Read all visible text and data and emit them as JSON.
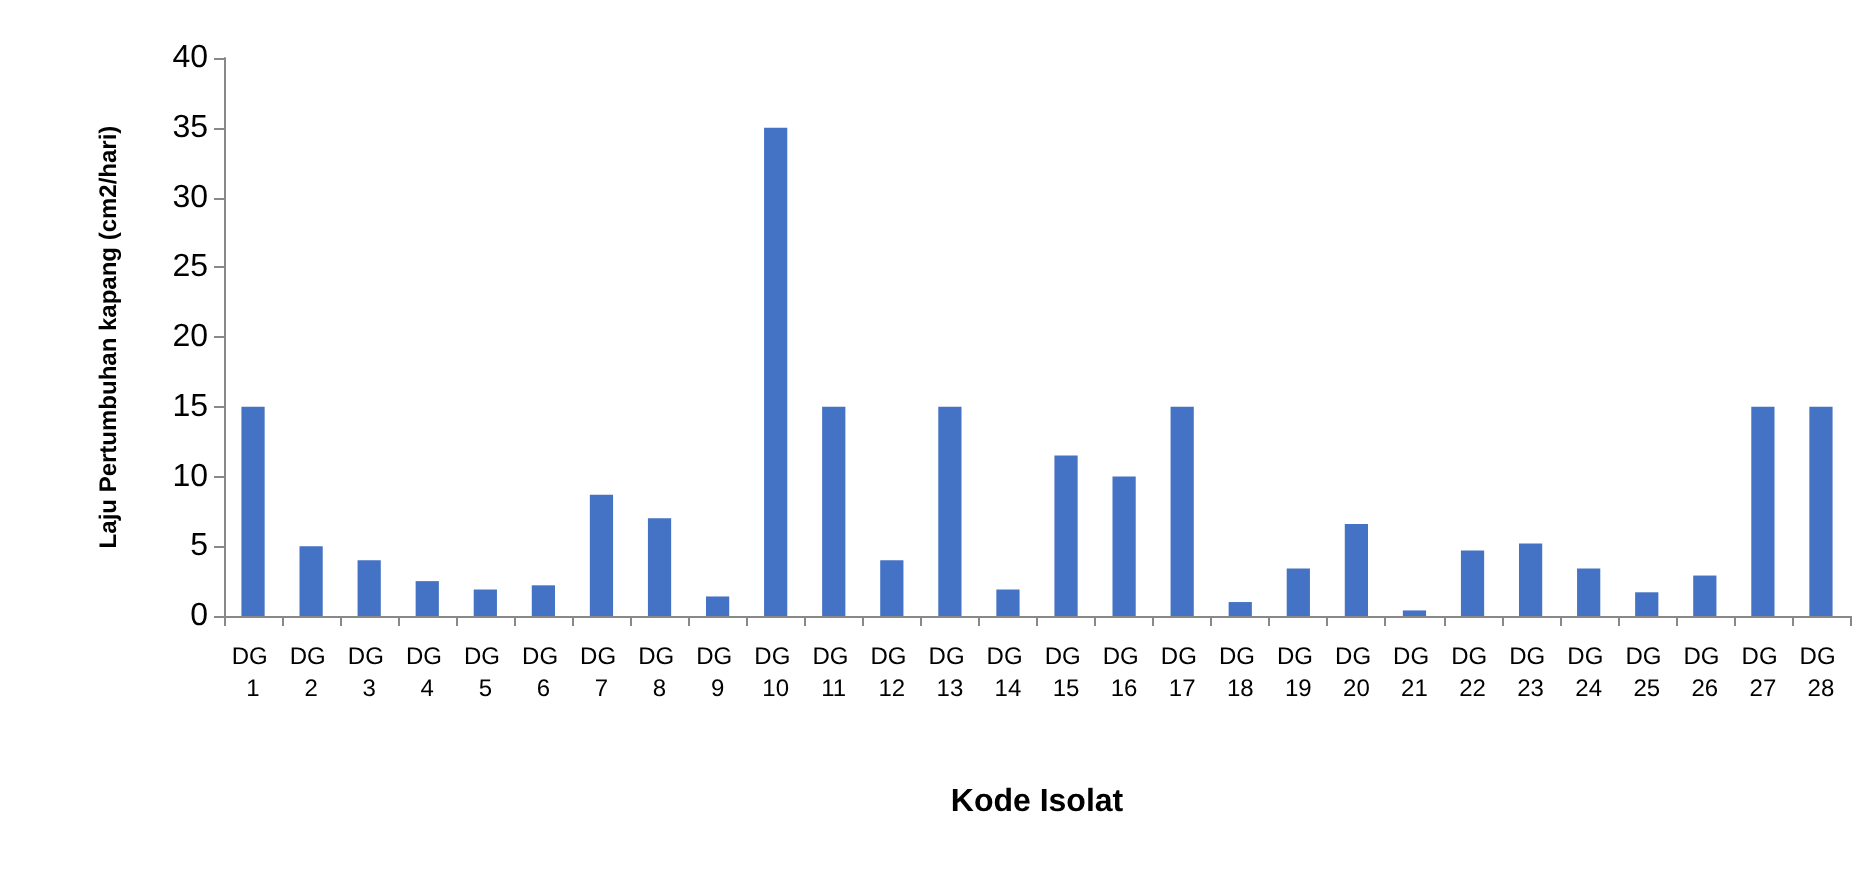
{
  "chart_data": {
    "type": "bar",
    "xlabel": "Kode Isolat",
    "ylabel": "Laju Pertumbuhan kapang (cm2/hari)",
    "categories": [
      "DG 1",
      "DG 2",
      "DG 3",
      "DG 4",
      "DG 5",
      "DG 6",
      "DG 7",
      "DG 8",
      "DG 9",
      "DG 10",
      "DG 11",
      "DG 12",
      "DG 13",
      "DG 14",
      "DG 15",
      "DG 16",
      "DG 17",
      "DG 18",
      "DG 19",
      "DG 20",
      "DG 21",
      "DG 22",
      "DG 23",
      "DG 24",
      "DG 25",
      "DG 26",
      "DG 27",
      "DG 28"
    ],
    "values": [
      15,
      5,
      4,
      2.5,
      1.9,
      2.2,
      8.7,
      7,
      1.4,
      35,
      15,
      4,
      15,
      1.9,
      11.5,
      10,
      15,
      1,
      3.4,
      6.6,
      0.4,
      4.7,
      5.2,
      3.4,
      1.7,
      2.9,
      15,
      15
    ],
    "color": "#4472c4",
    "ylim": [
      0,
      40
    ],
    "yticks": [
      0,
      5,
      10,
      15,
      20,
      25,
      30,
      35,
      40
    ],
    "grid": false
  }
}
